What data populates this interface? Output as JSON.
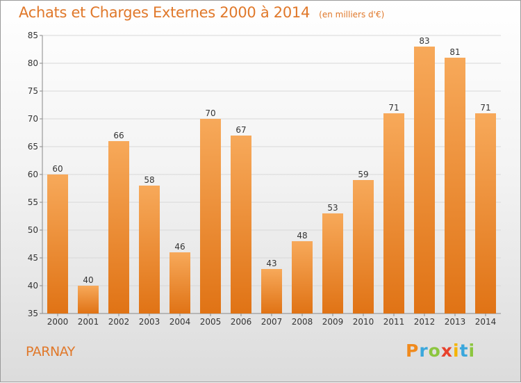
{
  "header": {
    "title": "Achats et Charges Externes 2000 à 2014",
    "subtitle": "(en milliers d'€)"
  },
  "footer": {
    "commune": "PARNAY",
    "brand": "Proxiti",
    "brand_letters": [
      {
        "ch": "P",
        "color": "#f08a1d"
      },
      {
        "ch": "r",
        "color": "#3aa7dc"
      },
      {
        "ch": "o",
        "color": "#8cc63f"
      },
      {
        "ch": "x",
        "color": "#e8412c"
      },
      {
        "ch": "i",
        "color": "#f5b400"
      },
      {
        "ch": "t",
        "color": "#3aa7dc"
      },
      {
        "ch": "i",
        "color": "#8cc63f"
      }
    ]
  },
  "colors": {
    "bar_top": "#f7a95a",
    "bar_bottom": "#e07315",
    "accent": "#e0782a",
    "axis_text": "#333333",
    "grid": "#d8d8d8"
  },
  "chart_data": {
    "type": "bar",
    "title": "Achats et Charges Externes 2000 à 2014",
    "subtitle": "(en milliers d'€)",
    "categories": [
      "2000",
      "2001",
      "2002",
      "2003",
      "2004",
      "2005",
      "2006",
      "2007",
      "2008",
      "2009",
      "2010",
      "2011",
      "2012",
      "2013",
      "2014"
    ],
    "values": [
      60,
      40,
      66,
      58,
      46,
      70,
      67,
      43,
      48,
      53,
      59,
      71,
      83,
      81,
      71
    ],
    "ylim": [
      35,
      85
    ],
    "yticks": [
      35,
      40,
      45,
      50,
      55,
      60,
      65,
      70,
      75,
      80,
      85
    ],
    "grid": true,
    "data_labels": true
  }
}
